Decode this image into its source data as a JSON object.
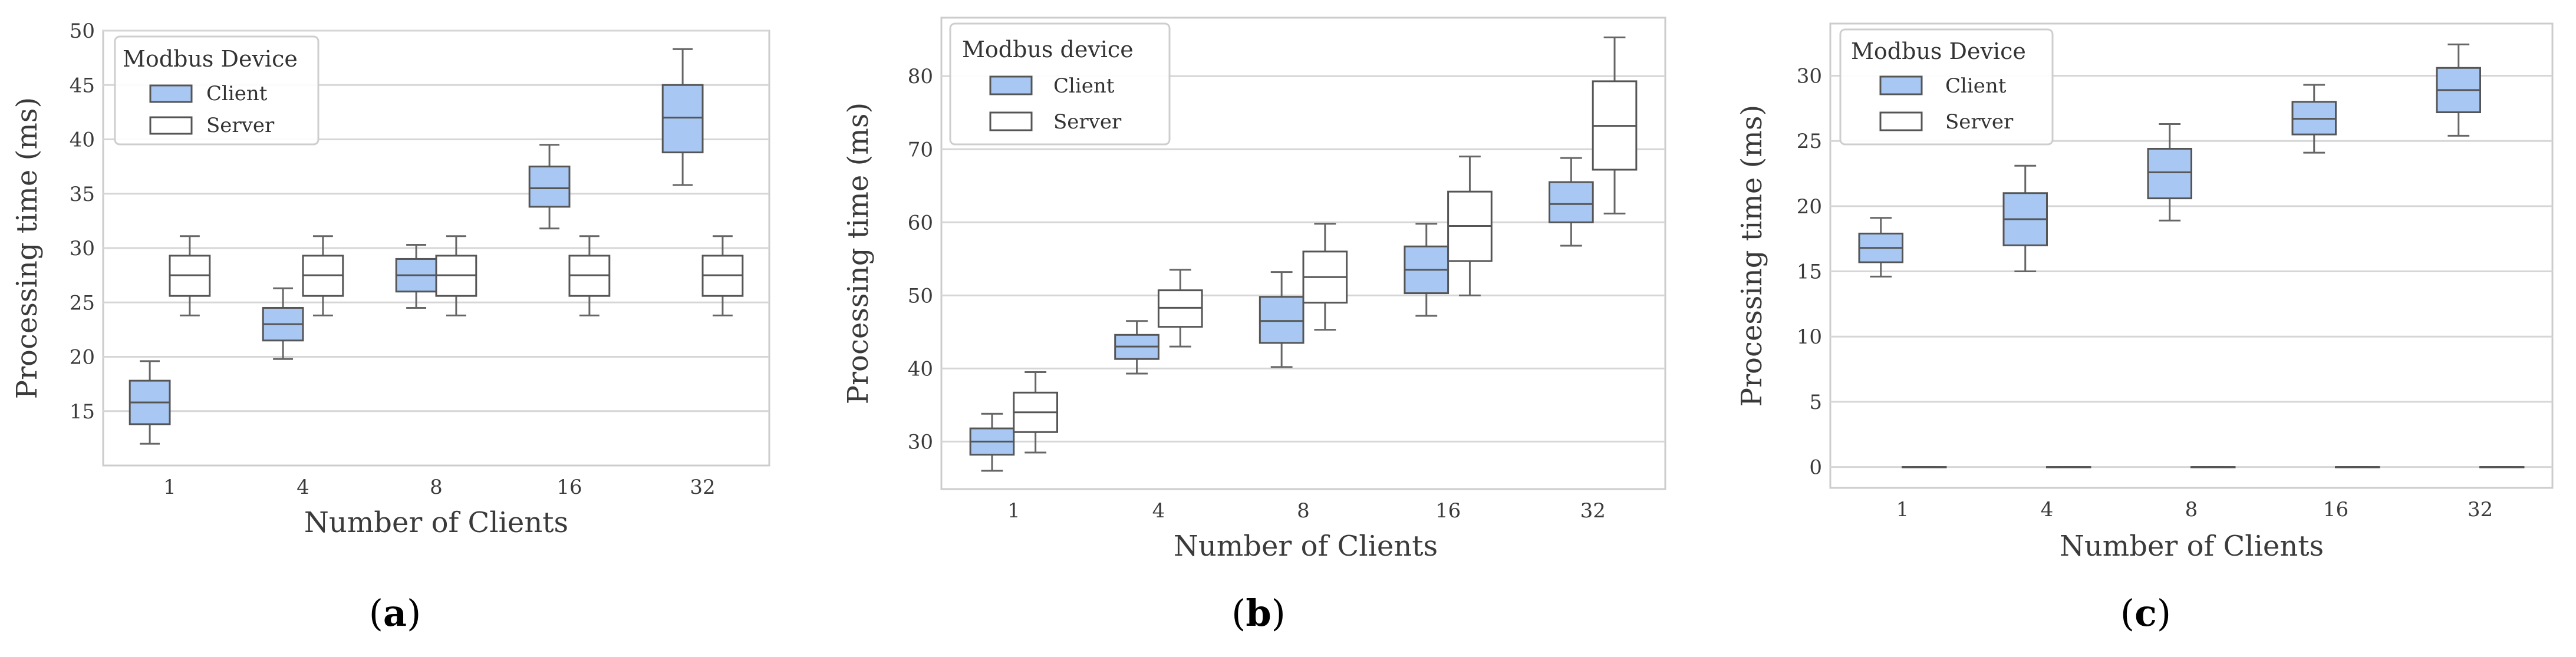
{
  "colors": {
    "client": "#a8c8f3",
    "server": "#ffffff",
    "edge": "#555555"
  },
  "chart_data": [
    {
      "type": "box",
      "panel_label": "a",
      "caption_open": "(",
      "caption_close": ")",
      "xlabel": "Number of Clients",
      "ylabel": "Processing time (ms)",
      "categories": [
        "1",
        "4",
        "8",
        "16",
        "32"
      ],
      "ylim": [
        10,
        50
      ],
      "yticks": [
        15,
        20,
        25,
        30,
        35,
        40,
        45,
        50
      ],
      "legend": {
        "title": "Modbus Device",
        "location": "top-left",
        "entries": [
          "Client",
          "Server"
        ]
      },
      "series": [
        {
          "name": "Client",
          "boxes": [
            {
              "min": 12.0,
              "q1": 13.8,
              "median": 15.8,
              "q3": 17.8,
              "max": 19.6
            },
            {
              "min": 19.8,
              "q1": 21.5,
              "median": 23.0,
              "q3": 24.5,
              "max": 26.3
            },
            {
              "min": 24.5,
              "q1": 26.0,
              "median": 27.5,
              "q3": 29.0,
              "max": 30.3
            },
            {
              "min": 31.8,
              "q1": 33.8,
              "median": 35.5,
              "q3": 37.5,
              "max": 39.5
            },
            {
              "min": 35.8,
              "q1": 38.8,
              "median": 42.0,
              "q3": 45.0,
              "max": 48.3
            }
          ]
        },
        {
          "name": "Server",
          "boxes": [
            {
              "min": 23.8,
              "q1": 25.6,
              "median": 27.5,
              "q3": 29.3,
              "max": 31.1
            },
            {
              "min": 23.8,
              "q1": 25.6,
              "median": 27.5,
              "q3": 29.3,
              "max": 31.1
            },
            {
              "min": 23.8,
              "q1": 25.6,
              "median": 27.5,
              "q3": 29.3,
              "max": 31.1
            },
            {
              "min": 23.8,
              "q1": 25.6,
              "median": 27.5,
              "q3": 29.3,
              "max": 31.1
            },
            {
              "min": 23.8,
              "q1": 25.6,
              "median": 27.5,
              "q3": 29.3,
              "max": 31.1
            }
          ]
        }
      ]
    },
    {
      "type": "box",
      "panel_label": "b",
      "caption_open": "(",
      "caption_close": ")",
      "xlabel": "Number of Clients",
      "ylabel": "Processing time (ms)",
      "categories": [
        "1",
        "4",
        "8",
        "16",
        "32"
      ],
      "ylim": [
        23.5,
        88
      ],
      "yticks": [
        30,
        40,
        50,
        60,
        70,
        80
      ],
      "legend": {
        "title": "Modbus device",
        "location": "top-left",
        "entries": [
          "Client",
          "Server"
        ]
      },
      "series": [
        {
          "name": "Client",
          "boxes": [
            {
              "min": 26.0,
              "q1": 28.2,
              "median": 30.0,
              "q3": 31.8,
              "max": 33.8
            },
            {
              "min": 39.3,
              "q1": 41.3,
              "median": 43.0,
              "q3": 44.6,
              "max": 46.5
            },
            {
              "min": 40.2,
              "q1": 43.5,
              "median": 46.5,
              "q3": 49.8,
              "max": 53.2
            },
            {
              "min": 47.2,
              "q1": 50.3,
              "median": 53.5,
              "q3": 56.7,
              "max": 59.8
            },
            {
              "min": 56.8,
              "q1": 60.0,
              "median": 62.5,
              "q3": 65.5,
              "max": 68.8
            }
          ]
        },
        {
          "name": "Server",
          "boxes": [
            {
              "min": 28.5,
              "q1": 31.3,
              "median": 34.0,
              "q3": 36.7,
              "max": 39.5
            },
            {
              "min": 43.0,
              "q1": 45.7,
              "median": 48.3,
              "q3": 50.7,
              "max": 53.5
            },
            {
              "min": 45.3,
              "q1": 49.0,
              "median": 52.5,
              "q3": 56.0,
              "max": 59.8
            },
            {
              "min": 50.0,
              "q1": 54.7,
              "median": 59.5,
              "q3": 64.2,
              "max": 69.0
            },
            {
              "min": 61.2,
              "q1": 67.2,
              "median": 73.2,
              "q3": 79.3,
              "max": 85.3
            }
          ]
        }
      ]
    },
    {
      "type": "box",
      "panel_label": "c",
      "caption_open": "(",
      "caption_close": ")",
      "xlabel": "Number of Clients",
      "ylabel": "Processing time (ms)",
      "categories": [
        "1",
        "4",
        "8",
        "16",
        "32"
      ],
      "ylim": [
        -1.6,
        34
      ],
      "yticks": [
        0,
        5,
        10,
        15,
        20,
        25,
        30
      ],
      "legend": {
        "title": "Modbus Device",
        "location": "top-left",
        "entries": [
          "Client",
          "Server"
        ]
      },
      "series": [
        {
          "name": "Client",
          "boxes": [
            {
              "min": 14.6,
              "q1": 15.7,
              "median": 16.8,
              "q3": 17.9,
              "max": 19.1
            },
            {
              "min": 15.0,
              "q1": 17.0,
              "median": 19.0,
              "q3": 21.0,
              "max": 23.1
            },
            {
              "min": 18.9,
              "q1": 20.6,
              "median": 22.6,
              "q3": 24.4,
              "max": 26.3
            },
            {
              "min": 24.1,
              "q1": 25.5,
              "median": 26.7,
              "q3": 28.0,
              "max": 29.3
            },
            {
              "min": 25.4,
              "q1": 27.2,
              "median": 28.9,
              "q3": 30.6,
              "max": 32.4
            }
          ]
        },
        {
          "name": "Server",
          "boxes": [
            {
              "min": 0,
              "q1": 0,
              "median": 0,
              "q3": 0,
              "max": 0
            },
            {
              "min": 0,
              "q1": 0,
              "median": 0,
              "q3": 0,
              "max": 0
            },
            {
              "min": 0,
              "q1": 0,
              "median": 0,
              "q3": 0,
              "max": 0
            },
            {
              "min": 0,
              "q1": 0,
              "median": 0,
              "q3": 0,
              "max": 0
            },
            {
              "min": 0,
              "q1": 0,
              "median": 0,
              "q3": 0,
              "max": 0
            }
          ]
        }
      ]
    }
  ]
}
